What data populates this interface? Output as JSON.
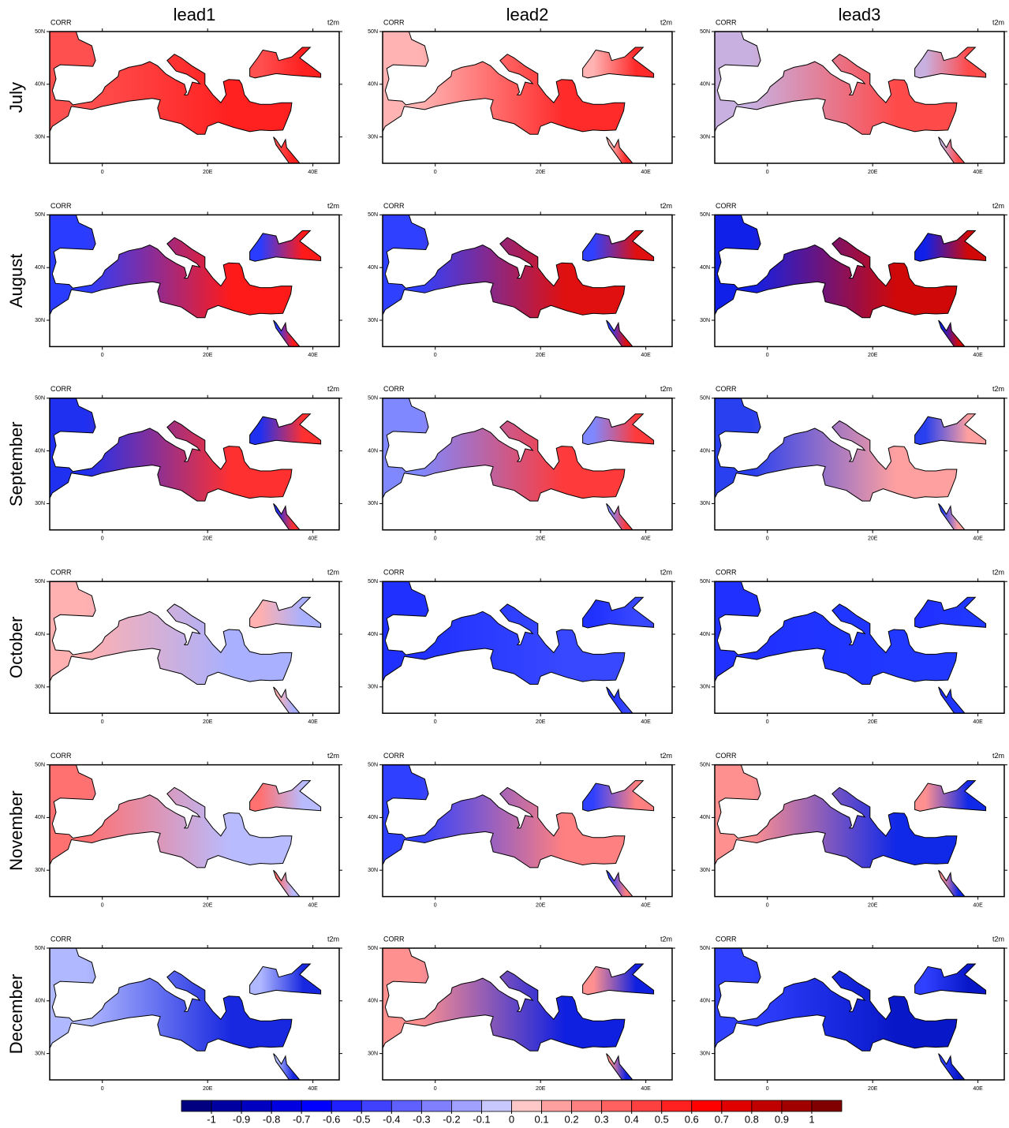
{
  "columns": [
    "lead1",
    "lead2",
    "lead3"
  ],
  "rows": [
    "July",
    "August",
    "September",
    "October",
    "November",
    "December"
  ],
  "panel_left": "CORR",
  "panel_right": "t2m",
  "lon_range": [
    -10,
    45
  ],
  "lat_range": [
    25,
    50
  ],
  "lat_ticks": [
    {
      "value": 50,
      "label": "50N"
    },
    {
      "value": 40,
      "label": "40N"
    },
    {
      "value": 30,
      "label": "30N"
    }
  ],
  "lon_ticks": [
    {
      "value": 0,
      "label": "0"
    },
    {
      "value": 20,
      "label": "20E"
    },
    {
      "value": 40,
      "label": "40E"
    }
  ],
  "panels": [
    [
      {
        "fill": [
          "#ff5050",
          "#ff2020"
        ]
      },
      {
        "fill": [
          "#ffb3b3",
          "#ff2a2a"
        ]
      },
      {
        "fill": [
          "#c8b0e0",
          "#ff4a4a"
        ]
      }
    ],
    [
      {
        "fill": [
          "#2a3cff",
          "#ff1a1a"
        ]
      },
      {
        "fill": [
          "#3040ff",
          "#e01010"
        ]
      },
      {
        "fill": [
          "#1020e8",
          "#d00808"
        ]
      }
    ],
    [
      {
        "fill": [
          "#2030f0",
          "#ff3030"
        ]
      },
      {
        "fill": [
          "#8088ff",
          "#ff3a3a"
        ]
      },
      {
        "fill": [
          "#2840f0",
          "#ffa0a0"
        ]
      }
    ],
    [
      {
        "fill": [
          "#ffb0b0",
          "#a8b0ff"
        ]
      },
      {
        "fill": [
          "#2030ff",
          "#3848ff"
        ]
      },
      {
        "fill": [
          "#2030ff",
          "#2038ff"
        ]
      }
    ],
    [
      {
        "fill": [
          "#ff7070",
          "#b8bcff"
        ]
      },
      {
        "fill": [
          "#3040ff",
          "#ff8080"
        ]
      },
      {
        "fill": [
          "#ff9090",
          "#1028e8"
        ]
      }
    ],
    [
      {
        "fill": [
          "#b0b8ff",
          "#1828e0"
        ]
      },
      {
        "fill": [
          "#ff9090",
          "#1020e0"
        ]
      },
      {
        "fill": [
          "#3040ff",
          "#0818c8"
        ]
      }
    ]
  ],
  "colorbar": {
    "levels": [
      -1,
      -0.9,
      -0.8,
      -0.7,
      -0.6,
      -0.5,
      -0.4,
      -0.3,
      -0.2,
      -0.1,
      0,
      0.1,
      0.2,
      0.3,
      0.4,
      0.5,
      0.6,
      0.7,
      0.8,
      0.9,
      1
    ],
    "colors": [
      "#000080",
      "#0000a0",
      "#0000c0",
      "#0000e0",
      "#0000ff",
      "#2020ff",
      "#4040ff",
      "#6060ff",
      "#8080ff",
      "#a0a0ff",
      "#c8c8ff",
      "#ffc8c8",
      "#ffa0a0",
      "#ff8080",
      "#ff6060",
      "#ff4040",
      "#ff2020",
      "#ff0000",
      "#e00000",
      "#c00000",
      "#a00000",
      "#800000"
    ]
  }
}
